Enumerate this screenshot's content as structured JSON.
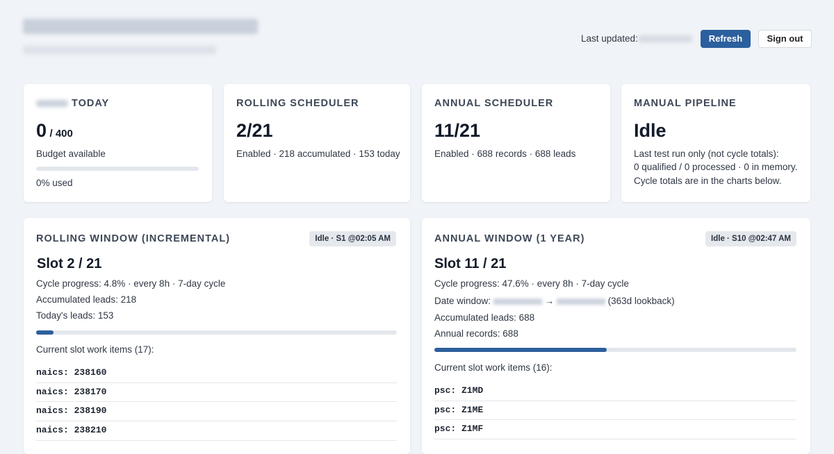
{
  "header": {
    "last_updated_label": "Last updated:",
    "refresh": "Refresh",
    "sign_out": "Sign out"
  },
  "cards": [
    {
      "label": "TODAY",
      "value": "0",
      "value_suffix": "/ 400",
      "lines": [
        "Budget available"
      ],
      "used_percent": 0,
      "used_label": "0% used"
    },
    {
      "label": "ROLLING SCHEDULER",
      "value": "2/21",
      "lines": [
        "Enabled · 218 accumulated · 153 today"
      ]
    },
    {
      "label": "ANNUAL SCHEDULER",
      "value": "11/21",
      "lines": [
        "Enabled · 688 records · 688 leads"
      ]
    },
    {
      "label": "MANUAL PIPELINE",
      "value": "Idle",
      "lines": [
        "Last test run only (not cycle totals):",
        "0 qualified / 0 processed · 0 in memory.",
        "Cycle totals are in the charts below."
      ]
    }
  ],
  "windows": [
    {
      "title": "ROLLING WINDOW (INCREMENTAL)",
      "badge": "Idle · S1 @02:05 AM",
      "slot": "Slot 2 / 21",
      "lines": [
        "Cycle progress: 4.8% · every 8h · 7-day cycle",
        "Accumulated leads: 218",
        "Today's leads: 153"
      ],
      "progress": 4.8,
      "items_label": "Current slot work items (17):",
      "items": [
        "naics: 238160",
        "naics: 238170",
        "naics: 238190",
        "naics: 238210"
      ]
    },
    {
      "title": "ANNUAL WINDOW (1 YEAR)",
      "badge": "Idle · S10 @02:47 AM",
      "slot": "Slot 11 / 21",
      "lines": [
        "Cycle progress: 47.6% · every 8h · 7-day cycle"
      ],
      "date_label": "Date window:",
      "date_arrow": "→",
      "date_lookback": "(363d lookback)",
      "lines_after": [
        "Accumulated leads: 688",
        "Annual records: 688"
      ],
      "progress": 47.6,
      "items_label": "Current slot work items (16):",
      "items": [
        "psc: Z1MD",
        "psc: Z1ME",
        "psc: Z1MF"
      ]
    }
  ]
}
